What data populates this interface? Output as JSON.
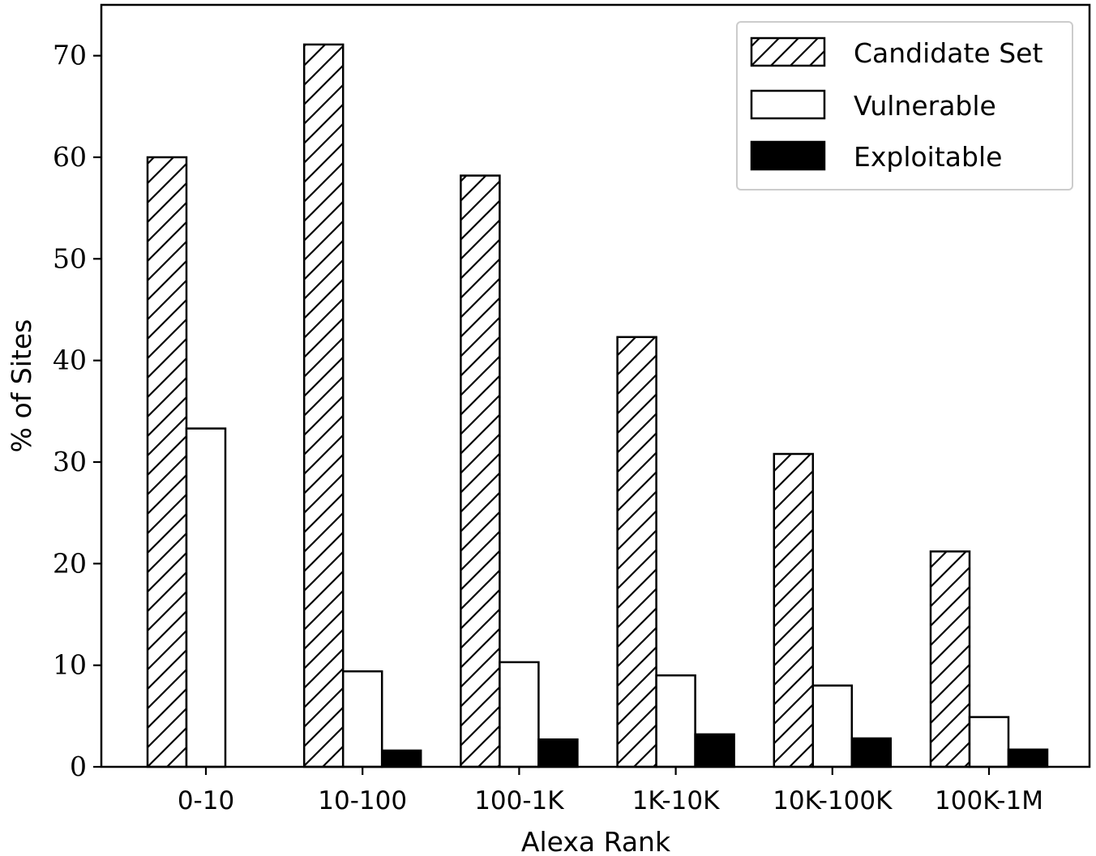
{
  "chart_data": {
    "type": "bar",
    "title": "",
    "xlabel": "Alexa Rank",
    "ylabel": "% of Sites",
    "categories": [
      "0-10",
      "10-100",
      "100-1K",
      "1K-10K",
      "10K-100K",
      "100K-1M"
    ],
    "series": [
      {
        "name": "Candidate Set",
        "values": [
          60.0,
          71.1,
          58.2,
          42.3,
          30.8,
          21.2
        ],
        "fill": "hatch"
      },
      {
        "name": "Vulnerable",
        "values": [
          33.3,
          9.4,
          10.3,
          9.0,
          8.0,
          4.9
        ],
        "fill": "white"
      },
      {
        "name": "Exploitable",
        "values": [
          0.0,
          1.6,
          2.7,
          3.2,
          2.8,
          1.7
        ],
        "fill": "black"
      }
    ],
    "ylim": [
      0,
      75
    ],
    "yticks": [
      0,
      10,
      20,
      30,
      40,
      50,
      60,
      70
    ],
    "grid": false,
    "legend_position": "top-right",
    "colors": {
      "edge": "#000000",
      "background": "#ffffff",
      "solid": "#000000",
      "legend_border": "#cccccc"
    }
  }
}
